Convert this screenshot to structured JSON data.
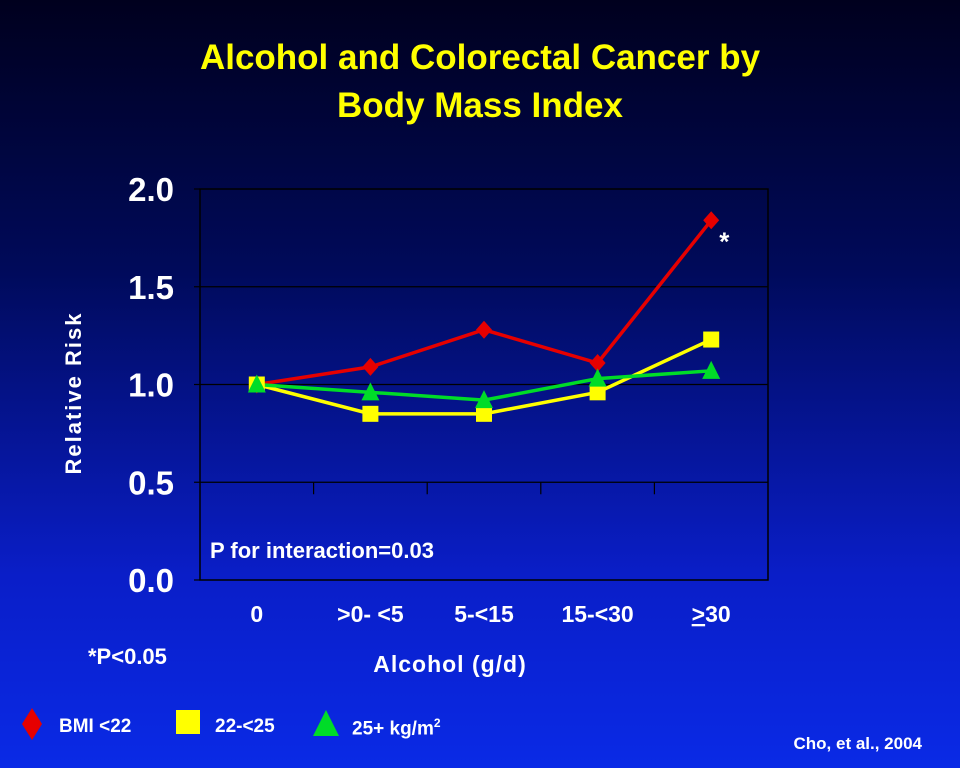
{
  "title": {
    "line1": "Alcohol and Colorectal Cancer by",
    "line2": "Body Mass Index"
  },
  "chart_data": {
    "type": "line",
    "categories": [
      "0",
      ">0- <5",
      "5-<15",
      "15-<30",
      ">30"
    ],
    "category_underline_char": {
      "index": 4,
      "char_index": 0
    },
    "xlabel": "Alcohol (g/d)",
    "ylabel": "Relative Risk",
    "ylim": [
      0,
      2
    ],
    "yticks": [
      "0.0",
      "0.5",
      "1.0",
      "1.5",
      "2.0"
    ],
    "grid": "horizontal",
    "series": [
      {
        "name": "BMI <22",
        "color": "#e60000",
        "marker": "diamond",
        "values": [
          1.0,
          1.09,
          1.28,
          1.11,
          1.84
        ]
      },
      {
        "name": "22-<25",
        "color": "#ffff00",
        "marker": "square",
        "values": [
          1.0,
          0.85,
          0.85,
          0.96,
          1.23
        ]
      },
      {
        "name": "25+ kg/m",
        "name_superscript": "2",
        "color": "#00dc28",
        "marker": "triangle",
        "values": [
          1.0,
          0.96,
          0.92,
          1.03,
          1.07
        ]
      }
    ],
    "annotations": [
      {
        "text": "*",
        "category_index": 4,
        "series_index": 0
      },
      {
        "text": "P for interaction=0.03"
      }
    ]
  },
  "footnote": "*P<0.05",
  "citation": "Cho, et al., 2004"
}
